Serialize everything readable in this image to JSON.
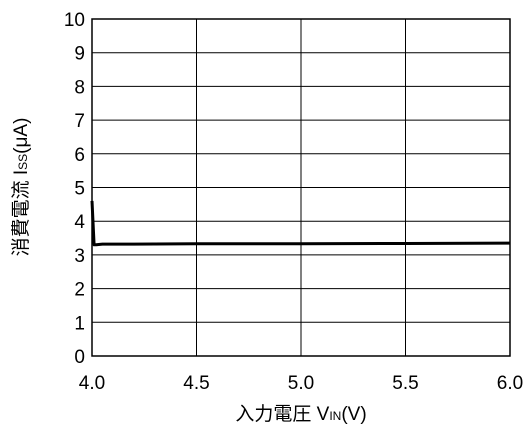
{
  "chart_data": {
    "type": "line",
    "title": "",
    "xlabel": "入力電圧 VIN(V)",
    "xlabel_parts": {
      "prefix": "入力電圧 V",
      "sub": "IN",
      "suffix": "(V)"
    },
    "ylabel": "消費電流 ISS(μA)",
    "ylabel_parts": {
      "prefix": "消費電流 I",
      "sub": "SS",
      "suffix": "(μA)"
    },
    "xlim": [
      4.0,
      6.0
    ],
    "ylim": [
      0,
      10
    ],
    "x_ticks": [
      4.0,
      4.5,
      5.0,
      5.5,
      6.0
    ],
    "x_tick_labels": [
      "4.0",
      "4.5",
      "5.0",
      "5.5",
      "6.0"
    ],
    "y_ticks": [
      0,
      1,
      2,
      3,
      4,
      5,
      6,
      7,
      8,
      9,
      10
    ],
    "y_tick_labels": [
      "0",
      "1",
      "2",
      "3",
      "4",
      "5",
      "6",
      "7",
      "8",
      "9",
      "10"
    ],
    "grid": true,
    "legend": "none",
    "series": [
      {
        "color": "#000000",
        "x": [
          4.0,
          4.01,
          4.02,
          4.05,
          4.1,
          4.2,
          4.5,
          5.0,
          5.5,
          6.0
        ],
        "y": [
          4.6,
          3.3,
          3.3,
          3.32,
          3.32,
          3.32,
          3.33,
          3.33,
          3.34,
          3.35
        ]
      }
    ]
  }
}
